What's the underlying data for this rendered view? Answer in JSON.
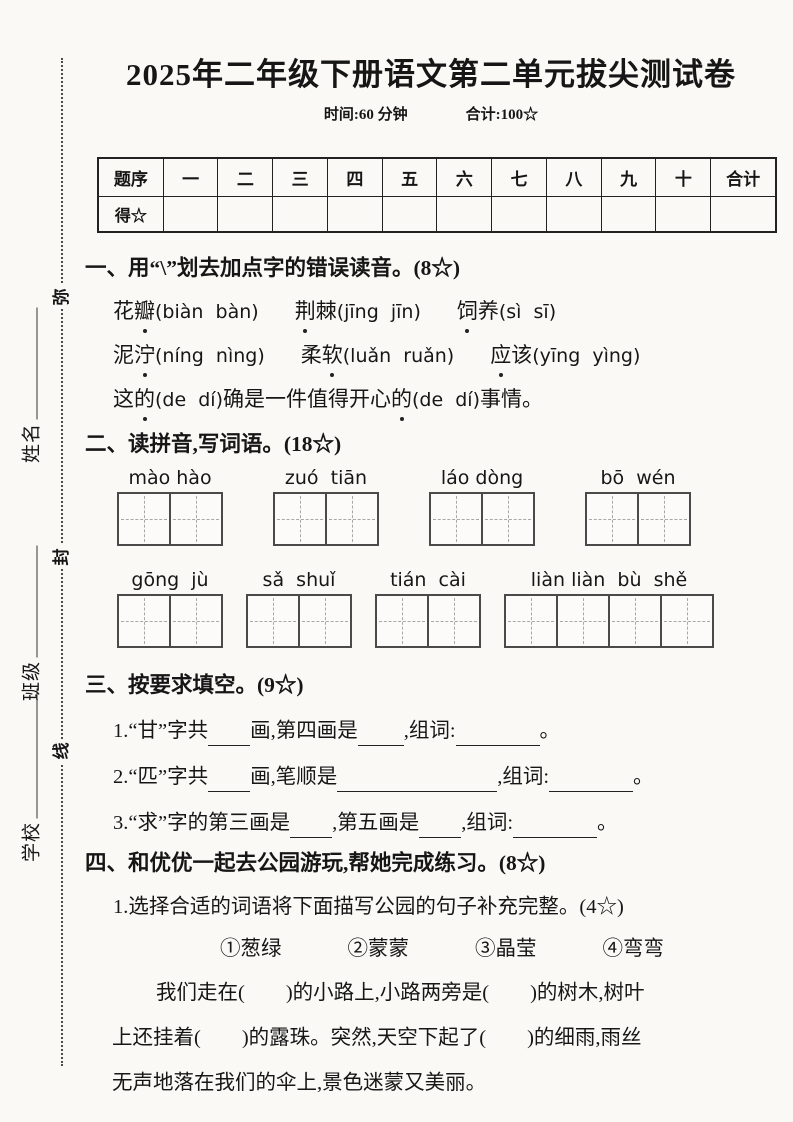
{
  "page": {
    "background": "#faf9f6",
    "title": "2025年二年级下册语文第二单元拔尖测试卷",
    "meta": {
      "time": "时间:60 分钟",
      "total": "合计:100☆"
    }
  },
  "seal": {
    "chars": [
      "弥",
      "封",
      "线"
    ],
    "fields": [
      "姓名",
      "班级",
      "学校"
    ]
  },
  "score_table": {
    "columns": [
      "题序",
      "一",
      "二",
      "三",
      "四",
      "五",
      "六",
      "七",
      "八",
      "九",
      "十",
      "合计"
    ],
    "score_row_label": "得☆"
  },
  "section1": {
    "heading": "一、用“\\”划去加点字的错误读音。(8☆)",
    "lines": [
      {
        "words": [
          {
            "segs": [
              {
                "t": "花"
              },
              {
                "t": "瓣",
                "dot": true
              },
              {
                "t": "(biàn  bàn)",
                "py": true
              }
            ]
          },
          {
            "segs": [
              {
                "t": "荆",
                "dot": true
              },
              {
                "t": "棘"
              },
              {
                "t": "(jīng  jīn)",
                "py": true
              }
            ]
          },
          {
            "segs": [
              {
                "t": "饲",
                "dot": true
              },
              {
                "t": "养"
              },
              {
                "t": "(sì  sī)",
                "py": true
              }
            ]
          }
        ]
      },
      {
        "words": [
          {
            "segs": [
              {
                "t": "泥"
              },
              {
                "t": "泞",
                "dot": true
              },
              {
                "t": "(níng  nìng)",
                "py": true
              }
            ]
          },
          {
            "segs": [
              {
                "t": "柔"
              },
              {
                "t": "软",
                "dot": true
              },
              {
                "t": "(luǎn  ruǎn)",
                "py": true
              }
            ]
          },
          {
            "segs": [
              {
                "t": "应",
                "dot": true
              },
              {
                "t": "该"
              },
              {
                "t": "(yīng  yìng)",
                "py": true
              }
            ]
          }
        ]
      },
      {
        "words": [
          {
            "segs": [
              {
                "t": "这"
              },
              {
                "t": "的",
                "dot": true
              },
              {
                "t": "(de  dí)",
                "py": true
              },
              {
                "t": "确是一件值得开心"
              },
              {
                "t": "的",
                "dot": true
              },
              {
                "t": "(de  dí)",
                "py": true
              },
              {
                "t": "事情。"
              }
            ]
          }
        ]
      }
    ]
  },
  "section2": {
    "heading": "二、读拼音,写词语。(18☆)",
    "rows": [
      {
        "items": [
          {
            "pinyin": "mào hào",
            "cells": 2
          },
          {
            "pinyin": "zuó  tiān",
            "cells": 2
          },
          {
            "pinyin": "láo dòng",
            "cells": 2
          },
          {
            "pinyin": "bō  wén",
            "cells": 2
          }
        ]
      },
      {
        "items": [
          {
            "pinyin": "gōng  jù",
            "cells": 2
          },
          {
            "pinyin": "sǎ  shuǐ",
            "cells": 2
          },
          {
            "pinyin": "tián  cài",
            "cells": 2
          },
          {
            "pinyin": "liàn liàn  bù  shě",
            "cells": 4
          }
        ]
      }
    ]
  },
  "section3": {
    "heading": "三、按要求填空。(9☆)",
    "items": [
      {
        "segments": [
          {
            "t": "1.“甘”字共"
          },
          {
            "b": 42
          },
          {
            "t": "画,第四画是"
          },
          {
            "b": 46
          },
          {
            "t": ",组词:"
          },
          {
            "b": 84
          },
          {
            "t": "。"
          }
        ]
      },
      {
        "segments": [
          {
            "t": "2.“匹”字共"
          },
          {
            "b": 42
          },
          {
            "t": "画,笔顺是"
          },
          {
            "b": 160
          },
          {
            "t": ",组词:"
          },
          {
            "b": 84
          },
          {
            "t": "。"
          }
        ]
      },
      {
        "segments": [
          {
            "t": "3.“求”字的第三画是"
          },
          {
            "b": 42
          },
          {
            "t": ",第五画是"
          },
          {
            "b": 42
          },
          {
            "t": ",组词:"
          },
          {
            "b": 84
          },
          {
            "t": "。"
          }
        ]
      }
    ]
  },
  "section4": {
    "heading": "四、和优优一起去公园游玩,帮她完成练习。(8☆)",
    "sub_heading": "1.选择合适的词语将下面描写公园的句子补充完整。(4☆)",
    "options": [
      "①葱绿",
      "②蒙蒙",
      "③晶莹",
      "④弯弯"
    ],
    "paragraph": [
      "我们走在(　　)的小路上,小路两旁是(　　)的树木,树叶",
      "上还挂着(　　)的露珠。突然,天空下起了(　　)的细雨,雨丝",
      "无声地落在我们的伞上,景色迷蒙又美丽。"
    ]
  }
}
